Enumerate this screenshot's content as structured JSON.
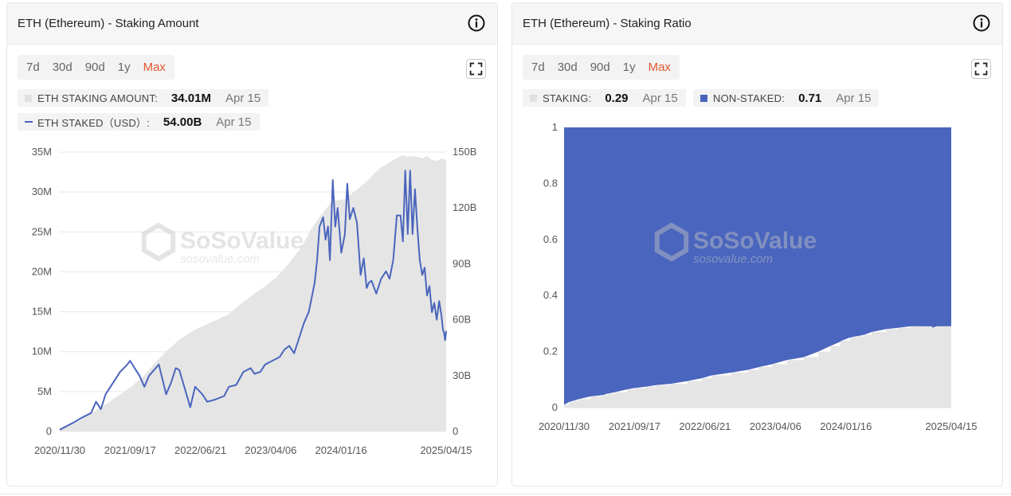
{
  "left_card": {
    "title": "ETH (Ethereum) - Staking Amount",
    "ranges": [
      "7d",
      "30d",
      "90d",
      "1y",
      "Max"
    ],
    "active_range": "Max",
    "legend1": {
      "label": "ETH STAKING AMOUNT:",
      "value": "34.01M",
      "date": "Apr 15"
    },
    "legend2": {
      "label": "ETH STAKED（USD）:",
      "value": "54.00B",
      "date": "Apr 15"
    }
  },
  "right_card": {
    "title": "ETH (Ethereum) - Staking Ratio",
    "ranges": [
      "7d",
      "30d",
      "90d",
      "1y",
      "Max"
    ],
    "active_range": "Max",
    "legend1": {
      "label": "STAKING:",
      "value": "0.29",
      "date": "Apr 15"
    },
    "legend2": {
      "label": "NON-STAKED:",
      "value": "0.71",
      "date": "Apr 15"
    }
  },
  "watermark": {
    "brand": "SoSoValue",
    "site": "sosovalue.com"
  },
  "colors": {
    "blue": "#4a65bd",
    "gray_area": "#e5e5e5",
    "active": "#e3572f"
  },
  "chart_data": [
    {
      "type": "area",
      "title": "ETH (Ethereum) - Staking Amount",
      "x_tick_labels": [
        "2020/11/30",
        "2021/09/17",
        "2022/06/21",
        "2023/04/06",
        "2024/01/16",
        "2025/04/15"
      ],
      "y_left_ticks": [
        "0",
        "5M",
        "10M",
        "15M",
        "20M",
        "25M",
        "30M",
        "35M"
      ],
      "y_right_ticks": [
        "0",
        "30B",
        "60B",
        "90B",
        "120B",
        "150B"
      ],
      "ylim_left": [
        0,
        35
      ],
      "ylim_right": [
        0,
        150
      ],
      "x_range": [
        0,
        1599
      ],
      "series": [
        {
          "name": "ETH STAKING AMOUNT",
          "axis": "left",
          "unit": "M",
          "style": "area",
          "x": [
            0,
            30,
            80,
            130,
            200,
            291,
            350,
            400,
            450,
            495,
            550,
            600,
            650,
            700,
            750,
            806,
            850,
            900,
            950,
            1000,
            1040,
            1080,
            1130,
            1180,
            1230,
            1280,
            1300,
            1330,
            1360,
            1390,
            1420,
            1440,
            1460,
            1480,
            1500,
            1520,
            1540,
            1560,
            1580,
            1599
          ],
          "values": [
            0.2,
            0.6,
            1.3,
            2.3,
            3.6,
            5.5,
            7.0,
            8.8,
            10.3,
            11.5,
            12.6,
            13.3,
            14.0,
            14.7,
            16.0,
            17.3,
            18.2,
            19.4,
            21.1,
            23.1,
            25.3,
            27.1,
            28.9,
            29.1,
            30.3,
            31.6,
            32.3,
            33.1,
            33.6,
            34.2,
            34.6,
            34.4,
            34.5,
            34.4,
            34.2,
            34.5,
            34.0,
            33.9,
            34.2,
            34.01
          ]
        },
        {
          "name": "ETH STAKED（USD）",
          "axis": "right",
          "unit": "B",
          "style": "line",
          "x": [
            0,
            60,
            100,
            130,
            150,
            170,
            190,
            220,
            250,
            280,
            291,
            310,
            330,
            350,
            370,
            390,
            410,
            440,
            460,
            480,
            495,
            520,
            540,
            560,
            590,
            610,
            640,
            680,
            700,
            730,
            760,
            790,
            806,
            830,
            850,
            880,
            910,
            930,
            950,
            970,
            990,
            1010,
            1030,
            1040,
            1055,
            1065,
            1075,
            1090,
            1100,
            1110,
            1118,
            1130,
            1140,
            1150,
            1165,
            1180,
            1190,
            1200,
            1215,
            1230,
            1245,
            1258,
            1270,
            1280,
            1290,
            1310,
            1330,
            1350,
            1365,
            1380,
            1395,
            1410,
            1420,
            1430,
            1440,
            1450,
            1460,
            1470,
            1480,
            1490,
            1500,
            1510,
            1520,
            1530,
            1540,
            1550,
            1560,
            1570,
            1580,
            1585,
            1590,
            1595,
            1599
          ],
          "values": [
            1,
            5,
            8,
            10,
            16,
            12,
            20,
            26,
            32,
            36,
            38,
            34,
            30,
            24,
            30,
            33,
            36,
            20,
            26,
            34,
            33,
            22,
            13,
            24,
            20,
            16,
            17,
            19,
            24,
            25,
            32,
            34,
            31,
            32,
            36,
            38,
            40,
            44,
            46,
            42,
            50,
            58,
            64,
            70,
            80,
            92,
            110,
            115,
            103,
            110,
            92,
            135,
            110,
            120,
            96,
            106,
            133,
            114,
            120,
            112,
            84,
            93,
            77,
            80,
            81,
            74,
            82,
            86,
            82,
            92,
            116,
            116,
            102,
            140,
            106,
            140,
            106,
            130,
            109,
            92,
            84,
            88,
            73,
            78,
            64,
            69,
            60,
            70,
            62,
            55,
            53,
            49,
            54
          ]
        }
      ]
    },
    {
      "type": "area",
      "stacked": true,
      "title": "ETH (Ethereum) - Staking Ratio",
      "x_tick_labels": [
        "2020/11/30",
        "2021/09/17",
        "2022/06/21",
        "2023/04/06",
        "2024/01/16",
        "2025/04/15"
      ],
      "y_ticks": [
        "0",
        "0.2",
        "0.4",
        "0.6",
        "0.8",
        "1"
      ],
      "ylim": [
        0,
        1
      ],
      "x_range": [
        0,
        1599
      ],
      "series": [
        {
          "name": "STAKING",
          "x": [
            0,
            20,
            40,
            60,
            110,
            160,
            180,
            210,
            260,
            291,
            340,
            380,
            440,
            510,
            570,
            610,
            690,
            760,
            806,
            860,
            920,
            990,
            1050,
            1100,
            1140,
            1150,
            1180,
            1210,
            1240,
            1270,
            1330,
            1380,
            1430,
            1480,
            1520,
            1540,
            1599
          ],
          "values": [
            0.01,
            0.02,
            0.025,
            0.03,
            0.04,
            0.045,
            0.05,
            0.055,
            0.065,
            0.07,
            0.075,
            0.08,
            0.085,
            0.095,
            0.105,
            0.115,
            0.125,
            0.135,
            0.145,
            0.155,
            0.17,
            0.18,
            0.2,
            0.22,
            0.235,
            0.24,
            0.25,
            0.255,
            0.26,
            0.27,
            0.28,
            0.285,
            0.29,
            0.29,
            0.285,
            0.29,
            0.29
          ]
        },
        {
          "name": "NON-STAKED",
          "x": [
            0,
            20,
            40,
            60,
            110,
            160,
            180,
            210,
            260,
            291,
            340,
            380,
            440,
            510,
            570,
            610,
            690,
            760,
            806,
            860,
            920,
            990,
            1050,
            1100,
            1140,
            1150,
            1180,
            1210,
            1240,
            1270,
            1330,
            1380,
            1430,
            1480,
            1520,
            1540,
            1599
          ],
          "values": [
            0.99,
            0.98,
            0.975,
            0.97,
            0.96,
            0.955,
            0.95,
            0.945,
            0.935,
            0.93,
            0.925,
            0.92,
            0.915,
            0.905,
            0.895,
            0.885,
            0.875,
            0.865,
            0.855,
            0.845,
            0.83,
            0.82,
            0.8,
            0.78,
            0.765,
            0.76,
            0.75,
            0.745,
            0.74,
            0.73,
            0.72,
            0.715,
            0.71,
            0.71,
            0.715,
            0.71,
            0.71
          ]
        }
      ]
    }
  ]
}
